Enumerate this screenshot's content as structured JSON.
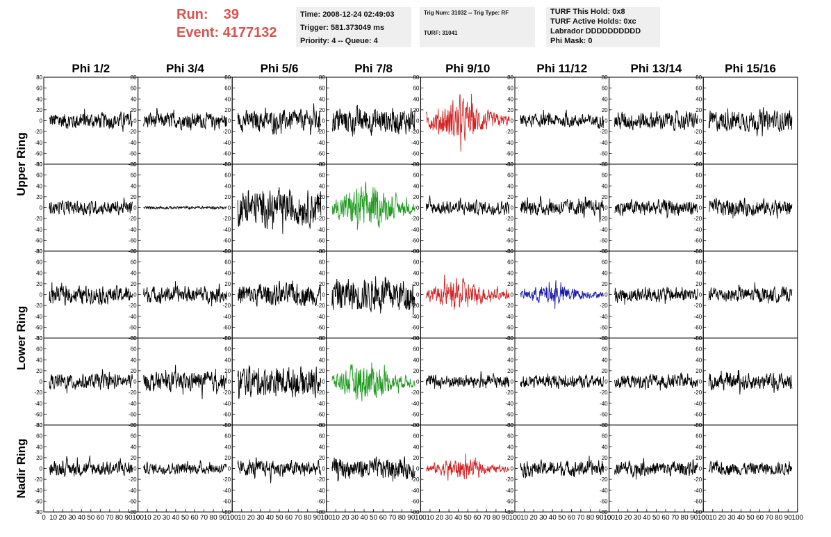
{
  "header": {
    "run_label": "Run:",
    "run_value": "39",
    "event_label": "Event:",
    "event_value": "4177132",
    "accent_color": "#d9534f"
  },
  "info_boxes": {
    "time": "Time: 2008-12-24 02:49:03",
    "trigger": "Trigger: 581.373049 ms",
    "priority": "Priority: 4 -- Queue: 4",
    "trig_num": "Trig Num: 31032 -- Trig Type: RF",
    "turf": "TURF: 31041",
    "turf_hold": "TURF This Hold: 0x8",
    "turf_active": "TURF Active Holds: 0xc",
    "labrador": "Labrador DDDDDDDDDD",
    "phi_mask": "Phi Mask: 0"
  },
  "chart_data": {
    "type": "line",
    "columns": [
      "Phi 1/2",
      "Phi 3/4",
      "Phi 5/6",
      "Phi 7/8",
      "Phi 9/10",
      "Phi 11/12",
      "Phi 13/14",
      "Phi 15/16"
    ],
    "ring_labels": [
      {
        "label": "Upper Ring",
        "rows": [
          0,
          1
        ]
      },
      {
        "label": "Lower Ring",
        "rows": [
          2,
          3
        ]
      },
      {
        "label": "Nadir Ring",
        "rows": [
          4
        ]
      }
    ],
    "xlim": [
      0,
      100
    ],
    "ylim": [
      -80,
      80
    ],
    "y_ticks": [
      -80,
      -60,
      -40,
      -20,
      0,
      20,
      40,
      60,
      80
    ],
    "y_tick_labels": [
      "-80",
      "-60",
      "-40",
      "-20",
      "0",
      "20",
      "40",
      "60",
      "80"
    ],
    "x_ticks": [
      0,
      10,
      20,
      30,
      40,
      50,
      60,
      70,
      80,
      90,
      100
    ],
    "x_tick_labels": [
      "0",
      "10",
      "20",
      "30",
      "40",
      "50",
      "60",
      "70",
      "80",
      "90",
      "100"
    ],
    "colors": {
      "default": "#000000",
      "red": "#d42020",
      "green": "#1f9a1f",
      "blue": "#1a1aa8"
    },
    "amplitudes": [
      [
        18,
        17,
        22,
        28,
        28,
        14,
        20,
        22
      ],
      [
        15,
        3,
        38,
        30,
        15,
        17,
        17,
        18
      ],
      [
        18,
        17,
        24,
        36,
        20,
        14,
        16,
        16
      ],
      [
        17,
        20,
        32,
        26,
        14,
        14,
        15,
        18
      ],
      [
        16,
        12,
        17,
        22,
        14,
        16,
        16,
        14
      ]
    ],
    "colored_cells": [
      {
        "row": 0,
        "col": 4,
        "color": "red"
      },
      {
        "row": 1,
        "col": 3,
        "color": "green"
      },
      {
        "row": 2,
        "col": 4,
        "color": "red"
      },
      {
        "row": 2,
        "col": 5,
        "color": "blue"
      },
      {
        "row": 3,
        "col": 3,
        "color": "green"
      },
      {
        "row": 4,
        "col": 4,
        "color": "red"
      }
    ]
  }
}
